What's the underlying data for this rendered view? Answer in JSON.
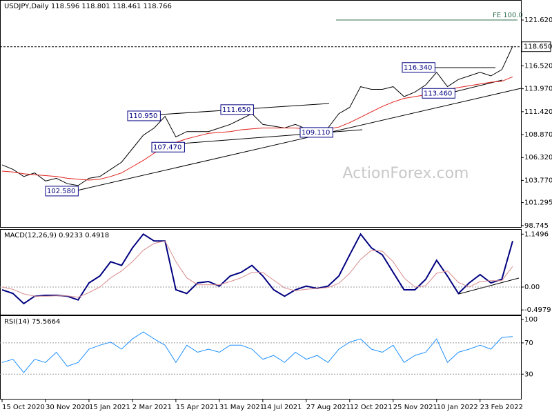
{
  "chart_data": [
    {
      "type": "line",
      "title": "USDJPY,Daily  118.596 118.801 118.461 118.766",
      "watermark": "ActionForex.com",
      "series": [
        {
          "color": "#000000",
          "values": [
            105.5,
            105.0,
            104.2,
            104.6,
            103.7,
            104.0,
            103.4,
            103.2,
            104.0,
            104.2,
            105.0,
            105.8,
            107.3,
            108.8,
            109.6,
            110.9,
            108.6,
            109.2,
            109.2,
            109.2,
            109.6,
            110.0,
            110.6,
            111.2,
            110.0,
            109.8,
            109.6,
            110.0,
            109.5,
            109.6,
            109.6,
            111.2,
            111.9,
            114.2,
            113.9,
            113.9,
            114.2,
            113.1,
            113.6,
            114.4,
            115.8,
            114.2,
            115.0,
            115.4,
            115.8,
            115.4,
            116.1,
            118.7
          ]
        },
        {
          "color": "#e0201b",
          "values": [
            104.8,
            104.7,
            104.5,
            104.4,
            104.3,
            104.2,
            104.0,
            103.9,
            103.8,
            103.9,
            104.2,
            104.6,
            105.3,
            106.0,
            106.8,
            107.5,
            108.0,
            108.4,
            108.7,
            109.0,
            109.1,
            109.2,
            109.4,
            109.5,
            109.6,
            109.6,
            109.6,
            109.6,
            109.5,
            109.4,
            109.5,
            109.7,
            110.2,
            110.8,
            111.4,
            112.0,
            112.5,
            112.9,
            113.1,
            113.3,
            113.6,
            113.9,
            114.1,
            114.3,
            114.5,
            114.7,
            114.8,
            115.3
          ]
        }
      ],
      "ylim": [
        98.58,
        123.85
      ],
      "yticks": [
        {
          "value": 121.62,
          "label": "121.620"
        },
        {
          "value": 116.52,
          "label": "116.520"
        },
        {
          "value": 113.97,
          "label": "113.970"
        },
        {
          "value": 111.42,
          "label": "111.420"
        },
        {
          "value": 108.87,
          "label": "108.870"
        },
        {
          "value": 106.32,
          "label": "106.320"
        },
        {
          "value": 103.77,
          "label": "103.770"
        },
        {
          "value": 101.295,
          "label": "101.295"
        },
        {
          "value": 98.745,
          "label": "98.745"
        }
      ],
      "last_price": {
        "value": 118.65,
        "label": "118.650"
      },
      "annotations": [
        {
          "value": 102.58,
          "label": "102.580"
        },
        {
          "value": 107.47,
          "label": "107.470"
        },
        {
          "value": 110.95,
          "label": "110.950"
        },
        {
          "value": 111.65,
          "label": "111.650"
        },
        {
          "value": 109.11,
          "label": "109.110"
        },
        {
          "value": 116.34,
          "label": "116.340"
        },
        {
          "value": 113.46,
          "label": "113.460"
        }
      ],
      "fe_label": "FE 100.0"
    },
    {
      "type": "line",
      "title": "MACD(12,26,9) 0.9233 0.4918",
      "series": [
        {
          "color": "#000080",
          "values": [
            -0.06,
            -0.14,
            -0.36,
            -0.2,
            -0.18,
            -0.18,
            -0.2,
            -0.28,
            0.09,
            0.24,
            0.55,
            0.47,
            0.85,
            1.15,
            1.0,
            1.0,
            -0.06,
            -0.14,
            0.09,
            0.12,
            0.02,
            0.24,
            0.32,
            0.47,
            0.24,
            -0.06,
            -0.2,
            -0.06,
            0.02,
            -0.03,
            0.02,
            0.24,
            0.7,
            1.15,
            0.85,
            0.7,
            0.32,
            -0.06,
            -0.06,
            0.17,
            0.58,
            0.24,
            -0.14,
            0.09,
            0.27,
            0.09,
            0.17,
            1.0
          ]
        },
        {
          "color": "#d98c8c",
          "values": [
            0.0,
            -0.05,
            -0.15,
            -0.2,
            -0.2,
            -0.19,
            -0.19,
            -0.22,
            -0.12,
            0.0,
            0.2,
            0.35,
            0.55,
            0.8,
            0.95,
            1.0,
            0.55,
            0.2,
            0.05,
            0.05,
            0.05,
            0.12,
            0.2,
            0.32,
            0.32,
            0.15,
            -0.02,
            -0.08,
            -0.05,
            -0.03,
            -0.01,
            0.08,
            0.3,
            0.6,
            0.8,
            0.78,
            0.55,
            0.2,
            0.0,
            0.03,
            0.3,
            0.35,
            0.1,
            0.0,
            0.12,
            0.14,
            0.14,
            0.45
          ]
        }
      ],
      "ylim": [
        -0.6,
        1.26
      ],
      "yticks": [
        1.1496,
        {
          "value": 0,
          "label": "0.00"
        },
        -0.4979
      ]
    },
    {
      "type": "line",
      "title": "RSI(14) 75.5664",
      "series": [
        {
          "color": "#1e90ff",
          "values": [
            45,
            49,
            32,
            49,
            45,
            58,
            40,
            45,
            62,
            67,
            71,
            62,
            75,
            84,
            75,
            67,
            45,
            67,
            58,
            62,
            58,
            67,
            67,
            62,
            49,
            54,
            45,
            58,
            49,
            54,
            45,
            62,
            71,
            75,
            62,
            58,
            67,
            45,
            54,
            58,
            75,
            45,
            58,
            62,
            67,
            62,
            77,
            78
          ]
        }
      ],
      "ylim": [
        -1.5,
        105.2
      ],
      "yticks": [
        100,
        70,
        30
      ],
      "categories": [
        "15 Oct 2020",
        null,
        null,
        null,
        "30 Nov 2020",
        null,
        null,
        null,
        "15 Jan 2021",
        null,
        null,
        null,
        "2 Mar 2021",
        null,
        null,
        null,
        "15 Apr 2021",
        null,
        null,
        null,
        "31 May 2021",
        null,
        null,
        null,
        "14 Jul 2021",
        null,
        null,
        null,
        "27 Aug 2021",
        null,
        null,
        null,
        "12 Oct 2021",
        null,
        null,
        null,
        "25 Nov 2021",
        null,
        null,
        null,
        "10 Jan 2022",
        null,
        null,
        null,
        "23 Feb 2022",
        null,
        null,
        null
      ]
    }
  ]
}
